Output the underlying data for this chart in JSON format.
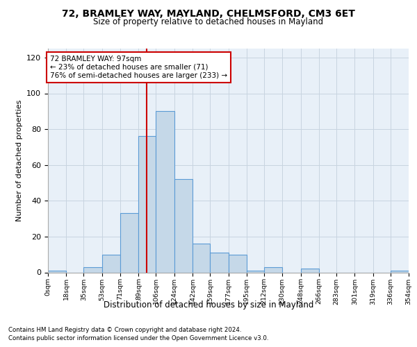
{
  "title1": "72, BRAMLEY WAY, MAYLAND, CHELMSFORD, CM3 6ET",
  "title2": "Size of property relative to detached houses in Mayland",
  "xlabel": "Distribution of detached houses by size in Mayland",
  "ylabel": "Number of detached properties",
  "bin_labels": [
    "0sqm",
    "18sqm",
    "35sqm",
    "53sqm",
    "71sqm",
    "89sqm",
    "106sqm",
    "124sqm",
    "142sqm",
    "159sqm",
    "177sqm",
    "195sqm",
    "212sqm",
    "230sqm",
    "248sqm",
    "266sqm",
    "283sqm",
    "301sqm",
    "319sqm",
    "336sqm",
    "354sqm"
  ],
  "bin_edges": [
    0,
    18,
    35,
    53,
    71,
    89,
    106,
    124,
    142,
    159,
    177,
    195,
    212,
    230,
    248,
    266,
    283,
    301,
    319,
    336,
    354
  ],
  "bar_heights": [
    1,
    0,
    3,
    10,
    33,
    76,
    90,
    52,
    16,
    11,
    10,
    1,
    3,
    0,
    2,
    0,
    0,
    0,
    0,
    1
  ],
  "bar_color": "#c5d8e8",
  "bar_edge_color": "#5b9bd5",
  "subject_value": 97,
  "vline_color": "#cc0000",
  "annotation_text": "72 BRAMLEY WAY: 97sqm\n← 23% of detached houses are smaller (71)\n76% of semi-detached houses are larger (233) →",
  "annotation_box_color": "#ffffff",
  "annotation_box_edge": "#cc0000",
  "ylim": [
    0,
    125
  ],
  "yticks": [
    0,
    20,
    40,
    60,
    80,
    100,
    120
  ],
  "footnote1": "Contains HM Land Registry data © Crown copyright and database right 2024.",
  "footnote2": "Contains public sector information licensed under the Open Government Licence v3.0.",
  "bg_color": "#e8f0f8"
}
